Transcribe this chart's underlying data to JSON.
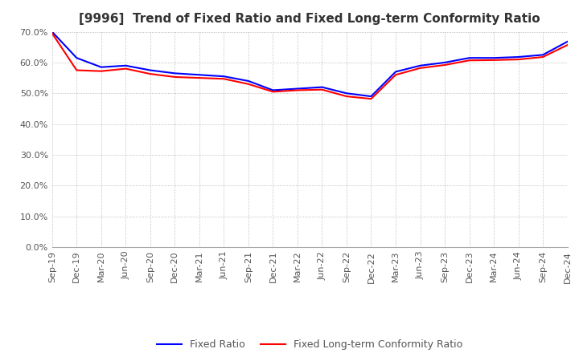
{
  "title": "[9996]  Trend of Fixed Ratio and Fixed Long-term Conformity Ratio",
  "x_labels": [
    "Sep-19",
    "Dec-19",
    "Mar-20",
    "Jun-20",
    "Sep-20",
    "Dec-20",
    "Mar-21",
    "Jun-21",
    "Sep-21",
    "Dec-21",
    "Mar-22",
    "Jun-22",
    "Sep-22",
    "Dec-22",
    "Mar-23",
    "Jun-23",
    "Sep-23",
    "Dec-23",
    "Mar-24",
    "Jun-24",
    "Sep-24",
    "Dec-24"
  ],
  "fixed_ratio": [
    0.7,
    0.615,
    0.585,
    0.59,
    0.575,
    0.565,
    0.56,
    0.555,
    0.54,
    0.51,
    0.515,
    0.52,
    0.5,
    0.49,
    0.57,
    0.59,
    0.6,
    0.615,
    0.615,
    0.618,
    0.625,
    0.668
  ],
  "fixed_lt_ratio": [
    0.695,
    0.575,
    0.572,
    0.58,
    0.563,
    0.553,
    0.55,
    0.547,
    0.53,
    0.505,
    0.51,
    0.512,
    0.49,
    0.482,
    0.56,
    0.582,
    0.592,
    0.607,
    0.608,
    0.61,
    0.618,
    0.657
  ],
  "fixed_ratio_color": "#0000FF",
  "fixed_lt_ratio_color": "#FF0000",
  "ylim": [
    0.0,
    0.7
  ],
  "yticks": [
    0.0,
    0.1,
    0.2,
    0.3,
    0.4,
    0.5,
    0.6,
    0.7
  ],
  "background_color": "#FFFFFF",
  "grid_color": "#AAAAAA",
  "line_width": 1.5,
  "legend_fixed_ratio": "Fixed Ratio",
  "legend_fixed_lt_ratio": "Fixed Long-term Conformity Ratio",
  "title_fontsize": 11,
  "tick_fontsize": 8,
  "legend_fontsize": 9
}
